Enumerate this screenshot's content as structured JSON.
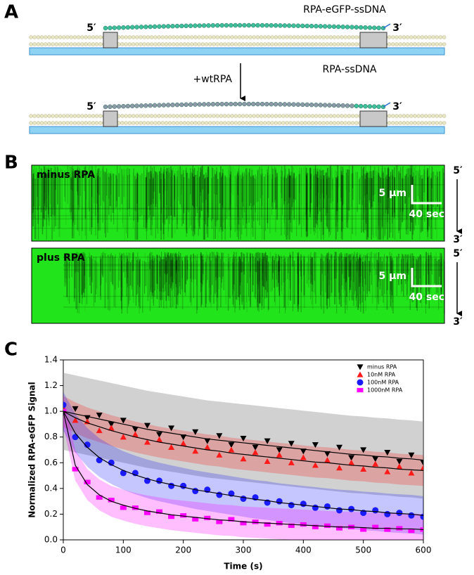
{
  "panel_a": {
    "label": "A",
    "top": {
      "five_prime": "5′",
      "three_prime": "3′",
      "label": "RPA-eGFP-ssDNA"
    },
    "step": "+wtRPA",
    "bottom": {
      "five_prime": "5′",
      "three_prime": "3′",
      "label": "RPA-ssDNA"
    }
  },
  "panel_b": {
    "label": "B",
    "kymographs": [
      {
        "label": "minus RPA",
        "scale_length": "5 μm",
        "scale_time": "40 sec",
        "five_prime": "5′",
        "three_prime": "3′"
      },
      {
        "label": "plus RPA",
        "scale_length": "5 μm",
        "scale_time": "40 sec",
        "five_prime": "5′",
        "three_prime": "3′"
      }
    ]
  },
  "chart_data": {
    "type": "scatter",
    "panel_label": "C",
    "x_label": "Time (s)",
    "y_label": "Normalized RPA-eGFP Signal",
    "xlim": [
      0,
      600
    ],
    "ylim": [
      0,
      1.4
    ],
    "xticks": [
      0,
      100,
      200,
      300,
      400,
      500,
      600
    ],
    "yticks": [
      {
        "value": 0,
        "label": "0.0"
      },
      0.2,
      0.4,
      0.6,
      0.8,
      {
        "value": 1,
        "label": "1.0"
      },
      1.2,
      1.4
    ],
    "legend": "top-right",
    "fit_color": "#000000",
    "x": [
      0,
      20,
      40,
      60,
      80,
      100,
      120,
      140,
      160,
      180,
      200,
      220,
      240,
      260,
      280,
      300,
      320,
      340,
      360,
      380,
      400,
      420,
      440,
      460,
      480,
      500,
      520,
      540,
      560,
      580,
      600
    ],
    "series": [
      {
        "name": "minus RPA",
        "color": "#000000",
        "band_color": "#9a9a9a",
        "marker": "triangle-down",
        "error": 0.3,
        "values": [
          1.03,
          1.02,
          0.95,
          0.97,
          0.9,
          0.93,
          0.86,
          0.89,
          0.82,
          0.87,
          0.8,
          0.84,
          0.77,
          0.81,
          0.74,
          0.79,
          0.72,
          0.77,
          0.7,
          0.75,
          0.69,
          0.74,
          0.67,
          0.72,
          0.64,
          0.7,
          0.63,
          0.68,
          0.61,
          0.66,
          0.6
        ],
        "fit": [
          1.0,
          0.98,
          0.96,
          0.94,
          0.92,
          0.9,
          0.88,
          0.86,
          0.845,
          0.83,
          0.815,
          0.8,
          0.785,
          0.775,
          0.765,
          0.755,
          0.745,
          0.735,
          0.725,
          0.715,
          0.705,
          0.695,
          0.685,
          0.675,
          0.665,
          0.66,
          0.65,
          0.645,
          0.635,
          0.63,
          0.62
        ]
      },
      {
        "name": "10nM RPA",
        "color": "#ff1a1a",
        "band_color": "#ff1a1a",
        "marker": "triangle-up",
        "error": 0.12,
        "values": [
          1.02,
          0.93,
          0.92,
          0.85,
          0.87,
          0.8,
          0.82,
          0.76,
          0.78,
          0.72,
          0.75,
          0.69,
          0.72,
          0.66,
          0.7,
          0.63,
          0.68,
          0.61,
          0.66,
          0.6,
          0.64,
          0.58,
          0.62,
          0.56,
          0.6,
          0.55,
          0.59,
          0.53,
          0.57,
          0.52,
          0.56
        ],
        "fit": [
          1.0,
          0.95,
          0.91,
          0.88,
          0.85,
          0.825,
          0.8,
          0.78,
          0.76,
          0.745,
          0.73,
          0.715,
          0.7,
          0.69,
          0.675,
          0.665,
          0.655,
          0.645,
          0.635,
          0.625,
          0.615,
          0.605,
          0.6,
          0.59,
          0.58,
          0.575,
          0.565,
          0.56,
          0.55,
          0.545,
          0.54
        ]
      },
      {
        "name": "100nM RPA",
        "color": "#1a1aff",
        "band_color": "#1a1aff",
        "marker": "circle",
        "error": 0.15,
        "values": [
          1.05,
          0.8,
          0.74,
          0.62,
          0.6,
          0.52,
          0.52,
          0.46,
          0.46,
          0.42,
          0.42,
          0.38,
          0.39,
          0.35,
          0.36,
          0.32,
          0.33,
          0.29,
          0.3,
          0.27,
          0.28,
          0.25,
          0.26,
          0.23,
          0.24,
          0.21,
          0.23,
          0.2,
          0.21,
          0.19,
          0.18
        ],
        "fit": [
          1.0,
          0.83,
          0.72,
          0.64,
          0.585,
          0.54,
          0.505,
          0.475,
          0.45,
          0.43,
          0.41,
          0.39,
          0.375,
          0.36,
          0.345,
          0.33,
          0.315,
          0.305,
          0.29,
          0.28,
          0.27,
          0.26,
          0.25,
          0.24,
          0.235,
          0.225,
          0.22,
          0.21,
          0.205,
          0.2,
          0.19
        ]
      },
      {
        "name": "1000nM RPA",
        "color": "#ff00ff",
        "band_color": "#ff00ff",
        "marker": "square",
        "error": 0.12,
        "values": [
          1.0,
          0.55,
          0.45,
          0.33,
          0.31,
          0.25,
          0.25,
          0.21,
          0.22,
          0.18,
          0.19,
          0.16,
          0.17,
          0.14,
          0.16,
          0.13,
          0.14,
          0.12,
          0.13,
          0.11,
          0.12,
          0.1,
          0.11,
          0.09,
          0.1,
          0.08,
          0.1,
          0.08,
          0.09,
          0.07,
          0.08
        ],
        "fit": [
          1.0,
          0.58,
          0.43,
          0.35,
          0.3,
          0.27,
          0.245,
          0.225,
          0.21,
          0.195,
          0.185,
          0.175,
          0.165,
          0.155,
          0.15,
          0.14,
          0.135,
          0.13,
          0.125,
          0.12,
          0.115,
          0.11,
          0.105,
          0.1,
          0.1,
          0.095,
          0.09,
          0.09,
          0.085,
          0.085,
          0.08
        ]
      }
    ]
  }
}
